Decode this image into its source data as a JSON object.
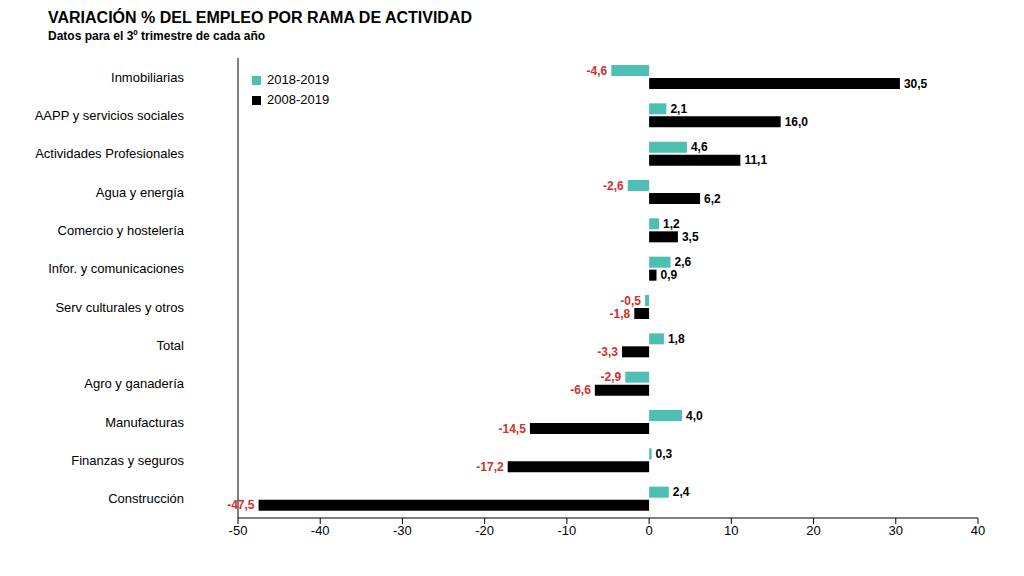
{
  "chart_data": {
    "type": "bar",
    "orientation": "horizontal",
    "title": "VARIACIÓN % DEL EMPLEO POR RAMA DE ACTIVIDAD",
    "subtitle": "Datos para el 3º trimestre de cada año",
    "categories": [
      "Inmobiliarias",
      "AAPP y servicios sociales",
      "Actividades Profesionales",
      "Agua y energía",
      "Comercio y hostelería",
      "Infor. y comunicaciones",
      "Serv culturales y otros",
      "Total",
      "Agro y ganadería",
      "Manufacturas",
      "Finanzas y seguros",
      "Construcción"
    ],
    "series": [
      {
        "name": "2018-2019",
        "color": "#4dbfb3",
        "values": [
          -4.6,
          2.1,
          4.6,
          -2.6,
          1.2,
          2.6,
          -0.5,
          1.8,
          -2.9,
          4.0,
          0.3,
          2.4
        ],
        "value_labels": [
          "-4,6",
          "2,1",
          "4,6",
          "-2,6",
          "1,2",
          "2,6",
          "-0,5",
          "1,8",
          "-2,9",
          "4,0",
          "0,3",
          "2,4"
        ]
      },
      {
        "name": "2008-2019",
        "color": "#000000",
        "values": [
          30.5,
          16.0,
          11.1,
          6.2,
          3.5,
          0.9,
          -1.8,
          -3.3,
          -6.6,
          -14.5,
          -17.2,
          -47.5
        ],
        "value_labels": [
          "30,5",
          "16,0",
          "11,1",
          "6,2",
          "3,5",
          "0,9",
          "-1,8",
          "-3,3",
          "-6,6",
          "-14,5",
          "-17,2",
          "-47,5"
        ]
      }
    ],
    "xlim": [
      -50,
      40
    ],
    "xticks": [
      -50,
      -40,
      -30,
      -20,
      -10,
      0,
      10,
      20,
      30,
      40
    ],
    "grid": false,
    "legend": "upper left",
    "data_labels": true
  }
}
